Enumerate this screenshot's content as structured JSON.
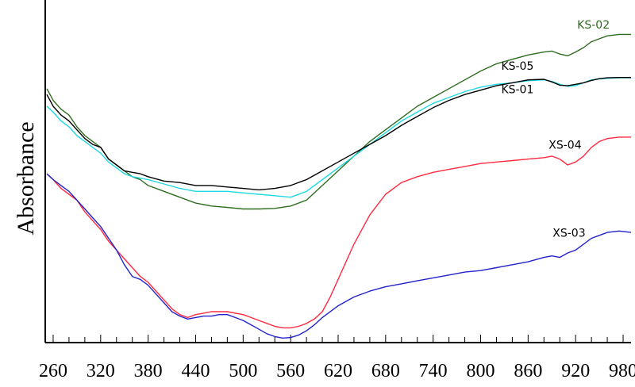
{
  "chart_data": {
    "type": "line",
    "title": "",
    "xlabel": "",
    "ylabel": "Absorbance",
    "xlim": [
      250,
      990
    ],
    "ylim": [
      0,
      1
    ],
    "x_ticks": [
      260,
      320,
      380,
      440,
      500,
      560,
      620,
      680,
      740,
      800,
      860,
      920,
      980
    ],
    "minor_tick_step": 20,
    "grid": false,
    "legend": "inline labels",
    "series": [
      {
        "name": "KS-02",
        "color": "#2e6b1f",
        "points": [
          [
            252,
            0.86
          ],
          [
            256,
            0.84
          ],
          [
            260,
            0.82
          ],
          [
            270,
            0.79
          ],
          [
            280,
            0.77
          ],
          [
            290,
            0.73
          ],
          [
            300,
            0.7
          ],
          [
            310,
            0.68
          ],
          [
            320,
            0.66
          ],
          [
            330,
            0.62
          ],
          [
            340,
            0.6
          ],
          [
            350,
            0.58
          ],
          [
            360,
            0.56
          ],
          [
            370,
            0.55
          ],
          [
            380,
            0.53
          ],
          [
            400,
            0.51
          ],
          [
            420,
            0.49
          ],
          [
            440,
            0.47
          ],
          [
            460,
            0.46
          ],
          [
            480,
            0.455
          ],
          [
            500,
            0.45
          ],
          [
            520,
            0.45
          ],
          [
            540,
            0.452
          ],
          [
            560,
            0.46
          ],
          [
            580,
            0.48
          ],
          [
            600,
            0.53
          ],
          [
            620,
            0.58
          ],
          [
            640,
            0.63
          ],
          [
            660,
            0.68
          ],
          [
            680,
            0.72
          ],
          [
            700,
            0.76
          ],
          [
            720,
            0.8
          ],
          [
            740,
            0.83
          ],
          [
            760,
            0.86
          ],
          [
            780,
            0.89
          ],
          [
            800,
            0.92
          ],
          [
            820,
            0.945
          ],
          [
            840,
            0.96
          ],
          [
            860,
            0.975
          ],
          [
            880,
            0.985
          ],
          [
            890,
            0.988
          ],
          [
            900,
            0.978
          ],
          [
            910,
            0.972
          ],
          [
            920,
            0.985
          ],
          [
            930,
            1.0
          ],
          [
            940,
            1.02
          ],
          [
            950,
            1.03
          ],
          [
            960,
            1.04
          ],
          [
            975,
            1.045
          ],
          [
            990,
            1.045
          ]
        ]
      },
      {
        "name": "KS-05",
        "color": "#20d8e0",
        "points": [
          [
            252,
            0.8
          ],
          [
            256,
            0.79
          ],
          [
            260,
            0.78
          ],
          [
            270,
            0.75
          ],
          [
            280,
            0.73
          ],
          [
            290,
            0.7
          ],
          [
            300,
            0.68
          ],
          [
            310,
            0.66
          ],
          [
            320,
            0.64
          ],
          [
            330,
            0.61
          ],
          [
            340,
            0.59
          ],
          [
            350,
            0.57
          ],
          [
            360,
            0.56
          ],
          [
            370,
            0.555
          ],
          [
            380,
            0.55
          ],
          [
            400,
            0.535
          ],
          [
            420,
            0.52
          ],
          [
            440,
            0.51
          ],
          [
            460,
            0.51
          ],
          [
            480,
            0.51
          ],
          [
            500,
            0.505
          ],
          [
            520,
            0.5
          ],
          [
            540,
            0.495
          ],
          [
            560,
            0.49
          ],
          [
            580,
            0.51
          ],
          [
            600,
            0.55
          ],
          [
            620,
            0.59
          ],
          [
            640,
            0.63
          ],
          [
            660,
            0.67
          ],
          [
            680,
            0.71
          ],
          [
            700,
            0.75
          ],
          [
            720,
            0.78
          ],
          [
            740,
            0.81
          ],
          [
            760,
            0.83
          ],
          [
            780,
            0.85
          ],
          [
            800,
            0.865
          ],
          [
            820,
            0.875
          ],
          [
            840,
            0.88
          ],
          [
            860,
            0.887
          ],
          [
            880,
            0.89
          ],
          [
            890,
            0.885
          ],
          [
            900,
            0.875
          ],
          [
            910,
            0.868
          ],
          [
            920,
            0.87
          ],
          [
            930,
            0.88
          ],
          [
            940,
            0.89
          ],
          [
            950,
            0.893
          ],
          [
            960,
            0.895
          ],
          [
            975,
            0.897
          ],
          [
            990,
            0.897
          ]
        ]
      },
      {
        "name": "KS-01",
        "color": "#000000",
        "points": [
          [
            252,
            0.84
          ],
          [
            256,
            0.82
          ],
          [
            260,
            0.8
          ],
          [
            270,
            0.77
          ],
          [
            280,
            0.75
          ],
          [
            290,
            0.72
          ],
          [
            300,
            0.69
          ],
          [
            310,
            0.67
          ],
          [
            320,
            0.66
          ],
          [
            330,
            0.62
          ],
          [
            340,
            0.6
          ],
          [
            350,
            0.58
          ],
          [
            360,
            0.575
          ],
          [
            370,
            0.57
          ],
          [
            380,
            0.56
          ],
          [
            400,
            0.545
          ],
          [
            420,
            0.54
          ],
          [
            440,
            0.53
          ],
          [
            460,
            0.53
          ],
          [
            480,
            0.525
          ],
          [
            500,
            0.52
          ],
          [
            520,
            0.515
          ],
          [
            540,
            0.52
          ],
          [
            560,
            0.53
          ],
          [
            580,
            0.55
          ],
          [
            600,
            0.58
          ],
          [
            620,
            0.61
          ],
          [
            640,
            0.64
          ],
          [
            660,
            0.67
          ],
          [
            680,
            0.7
          ],
          [
            700,
            0.735
          ],
          [
            720,
            0.765
          ],
          [
            740,
            0.795
          ],
          [
            760,
            0.82
          ],
          [
            780,
            0.84
          ],
          [
            800,
            0.855
          ],
          [
            820,
            0.87
          ],
          [
            840,
            0.88
          ],
          [
            860,
            0.89
          ],
          [
            880,
            0.892
          ],
          [
            890,
            0.883
          ],
          [
            900,
            0.872
          ],
          [
            910,
            0.87
          ],
          [
            920,
            0.875
          ],
          [
            930,
            0.88
          ],
          [
            940,
            0.888
          ],
          [
            950,
            0.894
          ],
          [
            960,
            0.897
          ],
          [
            975,
            0.898
          ],
          [
            990,
            0.898
          ]
        ]
      },
      {
        "name": "XS-04",
        "color": "#ff2a40",
        "points": [
          [
            252,
            0.57
          ],
          [
            256,
            0.56
          ],
          [
            260,
            0.55
          ],
          [
            270,
            0.52
          ],
          [
            280,
            0.5
          ],
          [
            290,
            0.48
          ],
          [
            300,
            0.44
          ],
          [
            310,
            0.41
          ],
          [
            320,
            0.38
          ],
          [
            330,
            0.34
          ],
          [
            340,
            0.31
          ],
          [
            350,
            0.28
          ],
          [
            360,
            0.25
          ],
          [
            370,
            0.22
          ],
          [
            380,
            0.2
          ],
          [
            390,
            0.17
          ],
          [
            400,
            0.14
          ],
          [
            410,
            0.11
          ],
          [
            420,
            0.09
          ],
          [
            430,
            0.08
          ],
          [
            440,
            0.09
          ],
          [
            450,
            0.095
          ],
          [
            460,
            0.1
          ],
          [
            470,
            0.1
          ],
          [
            480,
            0.1
          ],
          [
            490,
            0.095
          ],
          [
            500,
            0.09
          ],
          [
            510,
            0.08
          ],
          [
            520,
            0.07
          ],
          [
            530,
            0.06
          ],
          [
            540,
            0.05
          ],
          [
            550,
            0.045
          ],
          [
            560,
            0.045
          ],
          [
            570,
            0.05
          ],
          [
            580,
            0.06
          ],
          [
            590,
            0.075
          ],
          [
            600,
            0.1
          ],
          [
            610,
            0.15
          ],
          [
            620,
            0.21
          ],
          [
            640,
            0.33
          ],
          [
            660,
            0.43
          ],
          [
            680,
            0.5
          ],
          [
            700,
            0.54
          ],
          [
            720,
            0.56
          ],
          [
            740,
            0.575
          ],
          [
            760,
            0.585
          ],
          [
            780,
            0.595
          ],
          [
            800,
            0.605
          ],
          [
            820,
            0.61
          ],
          [
            840,
            0.615
          ],
          [
            860,
            0.62
          ],
          [
            880,
            0.625
          ],
          [
            890,
            0.63
          ],
          [
            900,
            0.62
          ],
          [
            910,
            0.6
          ],
          [
            920,
            0.61
          ],
          [
            930,
            0.63
          ],
          [
            940,
            0.66
          ],
          [
            950,
            0.68
          ],
          [
            960,
            0.69
          ],
          [
            975,
            0.695
          ],
          [
            990,
            0.695
          ]
        ]
      },
      {
        "name": "XS-03",
        "color": "#2222cc",
        "points": [
          [
            252,
            0.57
          ],
          [
            256,
            0.56
          ],
          [
            260,
            0.55
          ],
          [
            270,
            0.53
          ],
          [
            280,
            0.51
          ],
          [
            290,
            0.48
          ],
          [
            300,
            0.45
          ],
          [
            310,
            0.42
          ],
          [
            320,
            0.39
          ],
          [
            330,
            0.35
          ],
          [
            340,
            0.31
          ],
          [
            350,
            0.26
          ],
          [
            360,
            0.22
          ],
          [
            370,
            0.21
          ],
          [
            380,
            0.19
          ],
          [
            390,
            0.16
          ],
          [
            400,
            0.13
          ],
          [
            410,
            0.1
          ],
          [
            420,
            0.085
          ],
          [
            430,
            0.075
          ],
          [
            440,
            0.08
          ],
          [
            450,
            0.085
          ],
          [
            460,
            0.085
          ],
          [
            470,
            0.09
          ],
          [
            480,
            0.09
          ],
          [
            490,
            0.08
          ],
          [
            500,
            0.07
          ],
          [
            510,
            0.055
          ],
          [
            520,
            0.04
          ],
          [
            530,
            0.025
          ],
          [
            540,
            0.015
          ],
          [
            550,
            0.01
          ],
          [
            560,
            0.012
          ],
          [
            570,
            0.02
          ],
          [
            580,
            0.035
          ],
          [
            590,
            0.055
          ],
          [
            600,
            0.08
          ],
          [
            620,
            0.12
          ],
          [
            640,
            0.15
          ],
          [
            660,
            0.17
          ],
          [
            680,
            0.185
          ],
          [
            700,
            0.195
          ],
          [
            720,
            0.205
          ],
          [
            740,
            0.215
          ],
          [
            760,
            0.225
          ],
          [
            780,
            0.235
          ],
          [
            800,
            0.24
          ],
          [
            820,
            0.25
          ],
          [
            840,
            0.26
          ],
          [
            860,
            0.27
          ],
          [
            880,
            0.285
          ],
          [
            890,
            0.29
          ],
          [
            900,
            0.285
          ],
          [
            910,
            0.3
          ],
          [
            920,
            0.31
          ],
          [
            930,
            0.33
          ],
          [
            940,
            0.35
          ],
          [
            950,
            0.36
          ],
          [
            960,
            0.37
          ],
          [
            975,
            0.375
          ],
          [
            990,
            0.37
          ]
        ]
      }
    ],
    "labels": [
      {
        "text": "KS-02",
        "color": "#2e6b1f",
        "x": 922,
        "y": 1.065
      },
      {
        "text": "KS-05",
        "color": "#000000",
        "x": 826,
        "y": 0.925
      },
      {
        "text": "KS-01",
        "color": "#000000",
        "x": 826,
        "y": 0.845
      },
      {
        "text": "XS-04",
        "color": "#000000",
        "x": 886,
        "y": 0.655
      },
      {
        "text": "XS-03",
        "color": "#000000",
        "x": 891,
        "y": 0.355
      }
    ]
  }
}
